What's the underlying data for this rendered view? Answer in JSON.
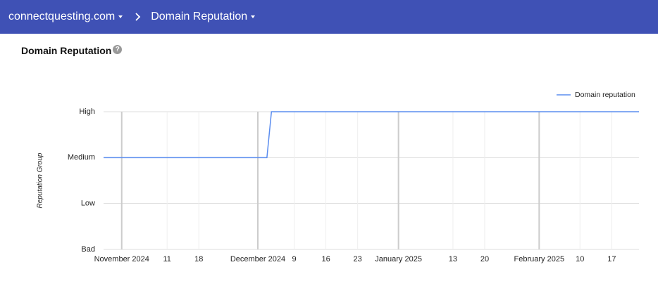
{
  "header": {
    "domain": "connectquesting.com",
    "page": "Domain Reputation"
  },
  "section_title": "Domain Reputation",
  "chart_data": {
    "type": "line",
    "y_label": "Reputation Group",
    "x": [
      "2024-10-28",
      "2024-12-03",
      "2024-12-04",
      "2025-02-23"
    ],
    "series": [
      {
        "name": "Domain reputation",
        "color": "#5b8def",
        "values": [
          2,
          2,
          3,
          3
        ]
      }
    ],
    "xlim": [
      "2024-10-28",
      "2025-02-23"
    ],
    "xticks": [
      {
        "value": "2024-11-01",
        "label": "November 2024"
      },
      {
        "value": "2024-11-11",
        "label": "11"
      },
      {
        "value": "2024-11-18",
        "label": "18"
      },
      {
        "value": "2024-12-01",
        "label": "December 2024"
      },
      {
        "value": "2024-12-09",
        "label": "9"
      },
      {
        "value": "2024-12-16",
        "label": "16"
      },
      {
        "value": "2024-12-23",
        "label": "23"
      },
      {
        "value": "2025-01-01",
        "label": "January 2025"
      },
      {
        "value": "2025-01-13",
        "label": "13"
      },
      {
        "value": "2025-01-20",
        "label": "20"
      },
      {
        "value": "2025-02-01",
        "label": "February 2025"
      },
      {
        "value": "2025-02-10",
        "label": "10"
      },
      {
        "value": "2025-02-17",
        "label": "17"
      }
    ],
    "ylim": [
      0,
      3
    ],
    "yticks": [
      {
        "value": 0,
        "label": "Bad"
      },
      {
        "value": 1,
        "label": "Low"
      },
      {
        "value": 2,
        "label": "Medium"
      },
      {
        "value": 3,
        "label": "High"
      }
    ],
    "grid": true,
    "legend": "top-right"
  }
}
